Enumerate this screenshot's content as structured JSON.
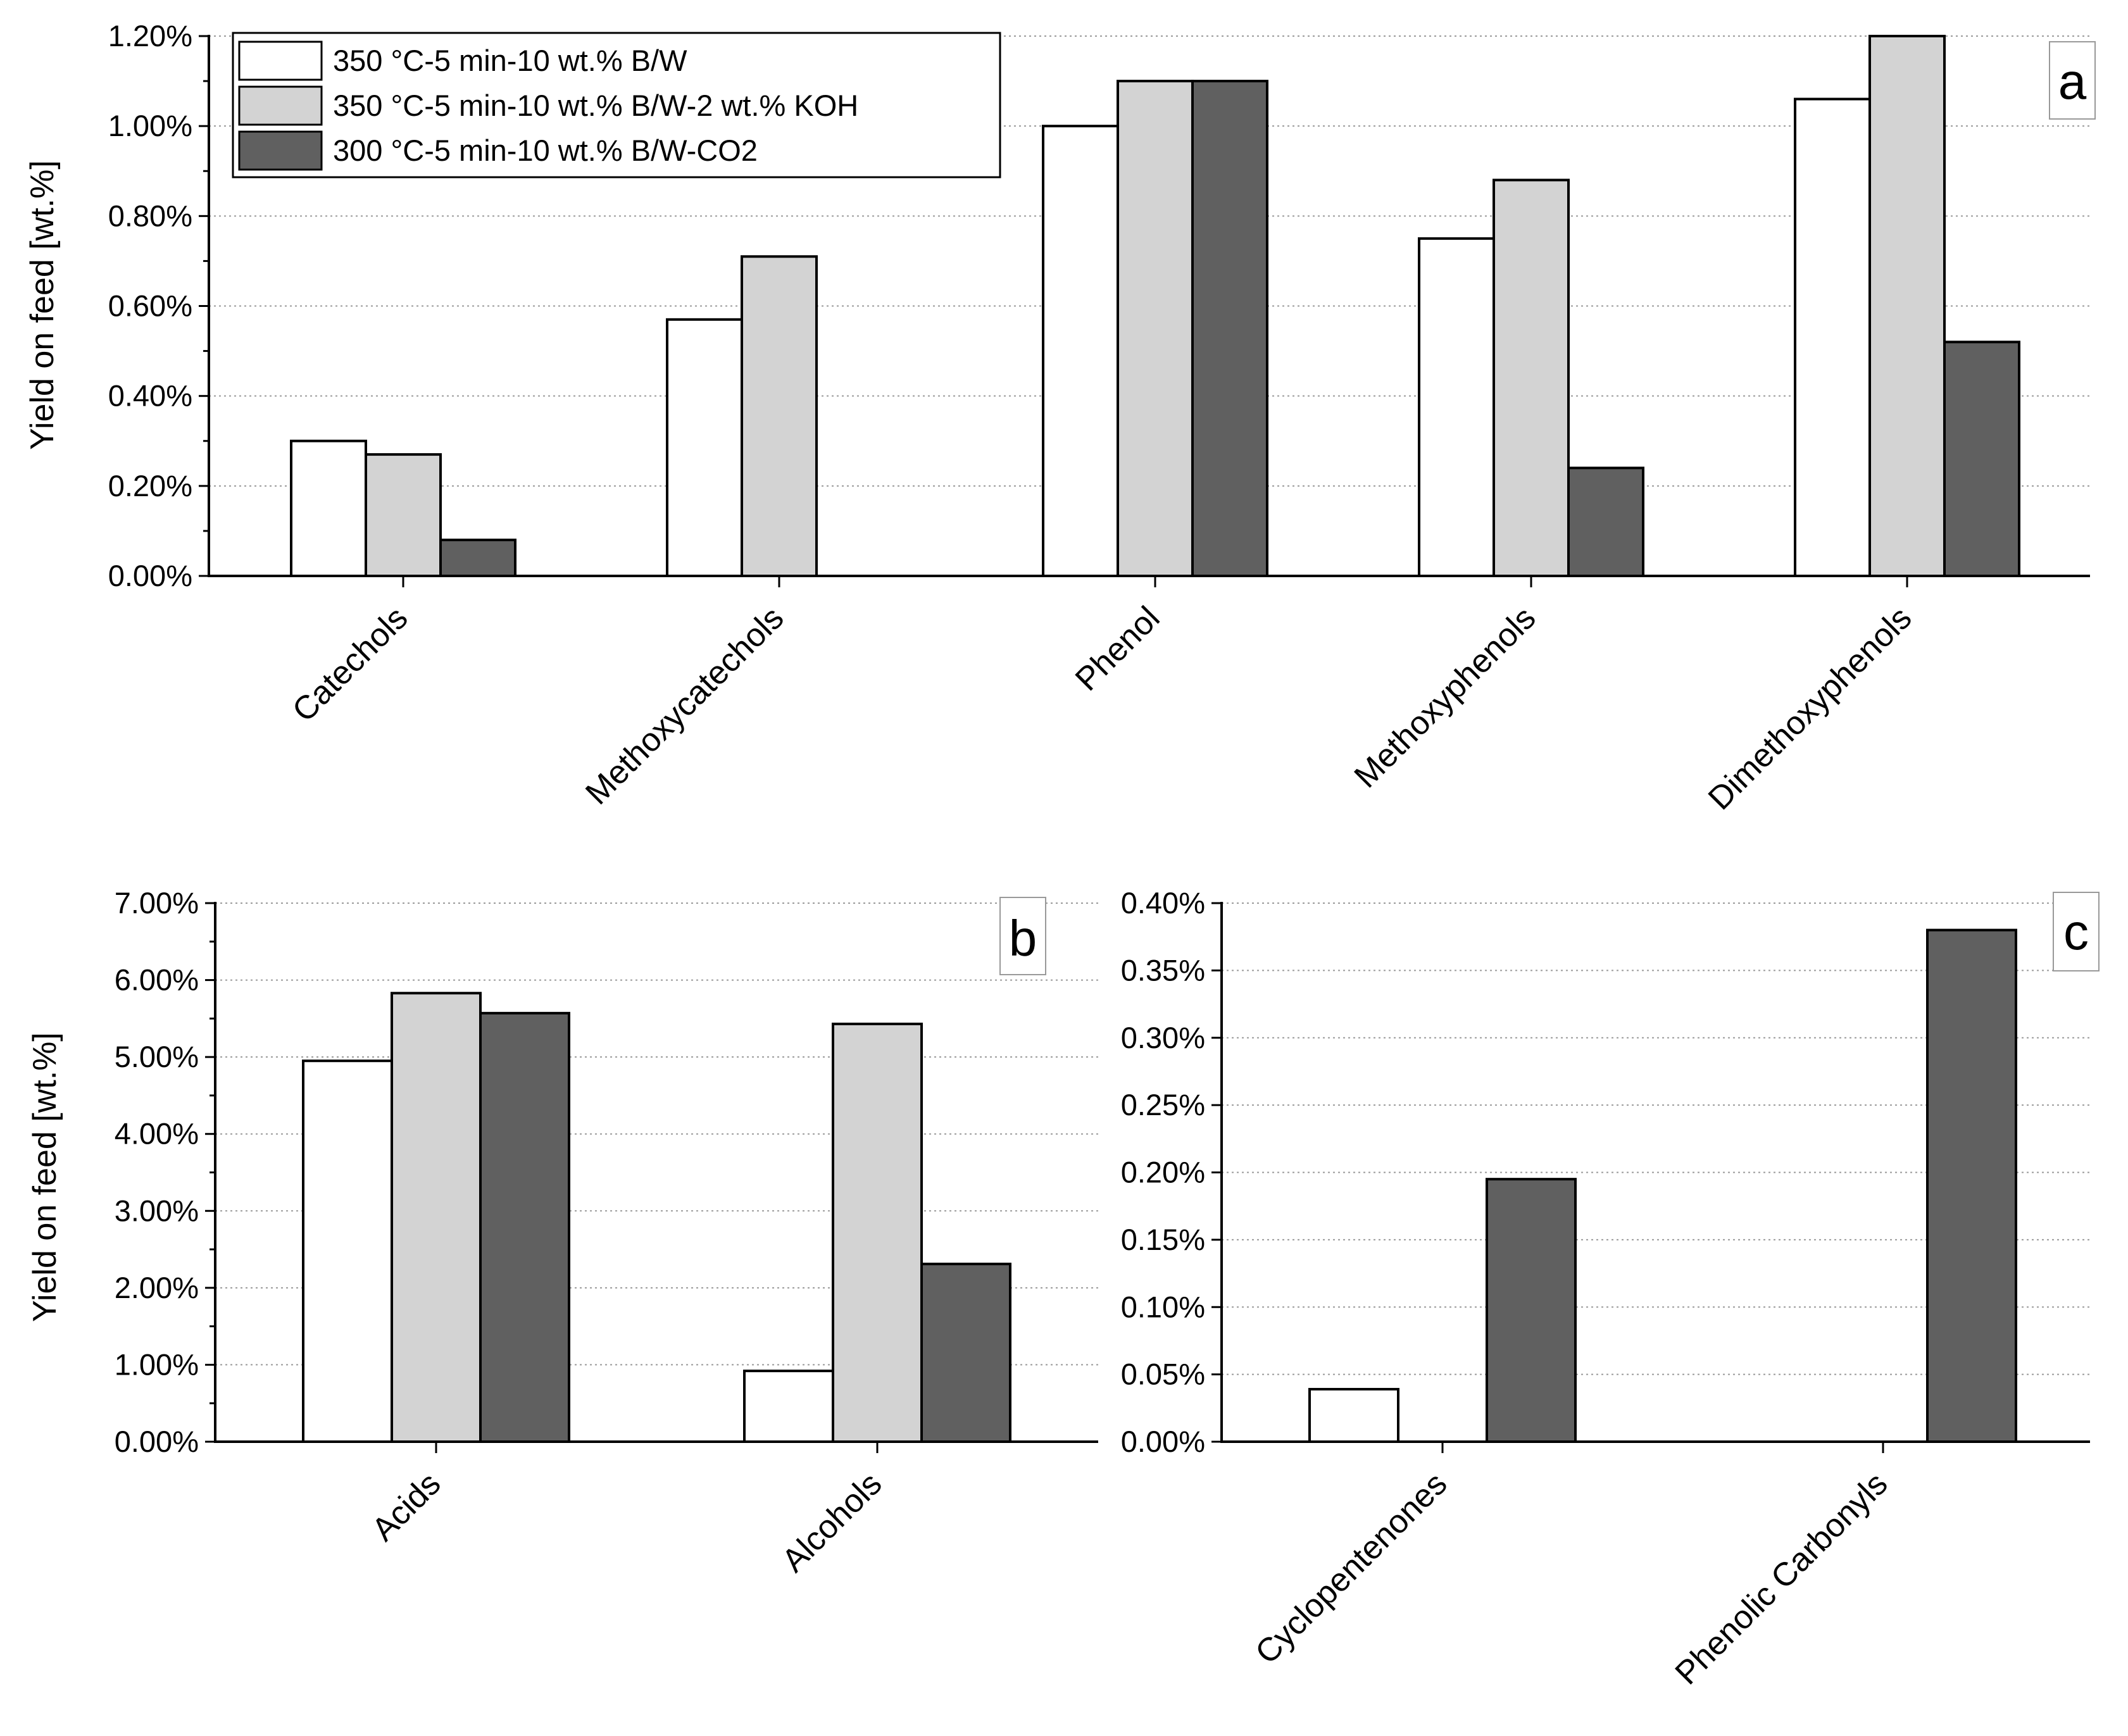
{
  "figure": {
    "legend": [
      {
        "label": "350 °C-5 min-10 wt.% B/W",
        "color": "#ffffff"
      },
      {
        "label": "350 °C-5 min-10 wt.% B/W-2 wt.% KOH",
        "color": "#d3d3d3"
      },
      {
        "label": "300 °C-5 min-10 wt.% B/W-CO2",
        "color": "#606060"
      }
    ]
  },
  "chart_data": [
    {
      "type": "bar",
      "panel": "a",
      "ylabel": "Yield on feed [wt.%]",
      "ylim": [
        0,
        0.012
      ],
      "yticks": [
        0,
        0.002,
        0.004,
        0.006,
        0.008,
        0.01,
        0.012
      ],
      "ytick_labels": [
        "0.00%",
        "0.20%",
        "0.40%",
        "0.60%",
        "0.80%",
        "1.00%",
        "1.20%"
      ],
      "grid": true,
      "legend_position": "top-left",
      "categories": [
        "Catechols",
        "Methoxycatechols",
        "Phenol",
        "Methoxyphenols",
        "Dimethoxyphenols"
      ],
      "series": [
        {
          "name": "350 °C-5 min-10 wt.% B/W",
          "color": "#ffffff",
          "values": [
            0.003,
            0.0057,
            0.01,
            0.0075,
            0.0106
          ]
        },
        {
          "name": "350 °C-5 min-10 wt.% B/W-2 wt.% KOH",
          "color": "#d3d3d3",
          "values": [
            0.0027,
            0.0071,
            0.011,
            0.0088,
            0.012
          ]
        },
        {
          "name": "300 °C-5 min-10 wt.% B/W-CO2",
          "color": "#606060",
          "values": [
            0.0008,
            0.0,
            0.011,
            0.0024,
            0.0052
          ]
        }
      ]
    },
    {
      "type": "bar",
      "panel": "b",
      "ylabel": "Yield on feed [wt.%]",
      "ylim": [
        0,
        0.07
      ],
      "yticks": [
        0,
        0.01,
        0.02,
        0.03,
        0.04,
        0.05,
        0.06,
        0.07
      ],
      "ytick_labels": [
        "0.00%",
        "1.00%",
        "2.00%",
        "3.00%",
        "4.00%",
        "5.00%",
        "6.00%",
        "7.00%"
      ],
      "grid": true,
      "categories": [
        "Acids",
        "Alcohols"
      ],
      "series": [
        {
          "name": "350 °C-5 min-10 wt.% B/W",
          "color": "#ffffff",
          "values": [
            0.0495,
            0.0092
          ]
        },
        {
          "name": "350 °C-5 min-10 wt.% B/W-2 wt.% KOH",
          "color": "#d3d3d3",
          "values": [
            0.0583,
            0.0543
          ]
        },
        {
          "name": "300 °C-5 min-10 wt.% B/W-CO2",
          "color": "#606060",
          "values": [
            0.0557,
            0.0231
          ]
        }
      ]
    },
    {
      "type": "bar",
      "panel": "c",
      "ylabel": "",
      "ylim": [
        0,
        0.004
      ],
      "yticks": [
        0,
        0.0005,
        0.001,
        0.0015,
        0.002,
        0.0025,
        0.003,
        0.0035,
        0.004
      ],
      "ytick_labels": [
        "0.00%",
        "0.05%",
        "0.10%",
        "0.15%",
        "0.20%",
        "0.25%",
        "0.30%",
        "0.35%",
        "0.40%"
      ],
      "grid": true,
      "categories": [
        "Cyclopentenones",
        "Phenolic Carbonyls"
      ],
      "series": [
        {
          "name": "350 °C-5 min-10 wt.% B/W",
          "color": "#ffffff",
          "values": [
            0.00039,
            0.0
          ]
        },
        {
          "name": "350 °C-5 min-10 wt.% B/W-2 wt.% KOH",
          "color": "#d3d3d3",
          "values": [
            0.0,
            0.0
          ]
        },
        {
          "name": "300 °C-5 min-10 wt.% B/W-CO2",
          "color": "#606060",
          "values": [
            0.00195,
            0.0038
          ]
        }
      ]
    }
  ]
}
